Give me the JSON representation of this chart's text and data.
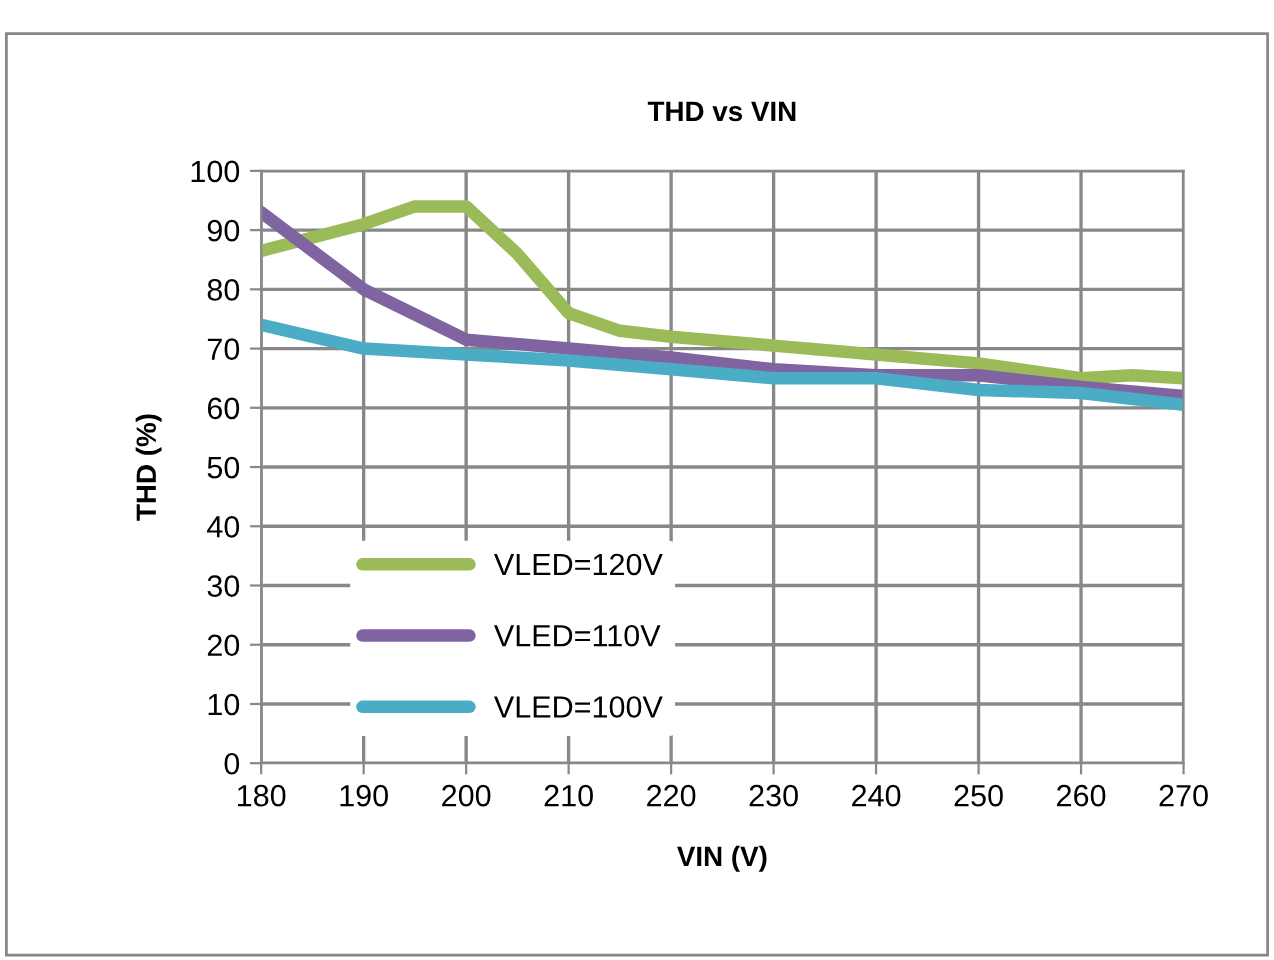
{
  "chart_data": {
    "type": "line",
    "title": "THD vs VIN",
    "xlabel": "VIN (V)",
    "ylabel": "THD (%)",
    "xlim": [
      180,
      270
    ],
    "xticks": [
      180,
      190,
      200,
      210,
      220,
      230,
      240,
      250,
      260,
      270
    ],
    "ylim": [
      0,
      100
    ],
    "yticks": [
      0,
      10,
      20,
      30,
      40,
      50,
      60,
      70,
      80,
      90,
      100
    ],
    "grid": true,
    "legend": "bottom left",
    "marker": "none",
    "line_style": "solid",
    "series": [
      {
        "name": "VLED=120V",
        "color": "#9bbb59",
        "x": [
          180,
          190,
          195,
          200,
          205,
          210,
          215,
          220,
          230,
          240,
          250,
          260,
          265,
          270
        ],
        "values": [
          86.5,
          91,
          94,
          94,
          86,
          76,
          73,
          72,
          70.5,
          69,
          67.5,
          65,
          65.5,
          65
        ]
      },
      {
        "name": "VLED=110V",
        "color": "#8064a2",
        "x": [
          180,
          190,
          200,
          210,
          220,
          230,
          240,
          250,
          260,
          270
        ],
        "values": [
          93,
          80,
          71.5,
          70,
          68.5,
          66.5,
          65.5,
          65.5,
          63.5,
          62
        ]
      },
      {
        "name": "VLED=100V",
        "color": "#4bacc6",
        "x": [
          180,
          190,
          200,
          210,
          220,
          230,
          240,
          250,
          260,
          270
        ],
        "values": [
          74,
          70,
          69,
          68,
          66.5,
          65,
          65,
          63,
          62.5,
          60.5
        ]
      }
    ]
  }
}
